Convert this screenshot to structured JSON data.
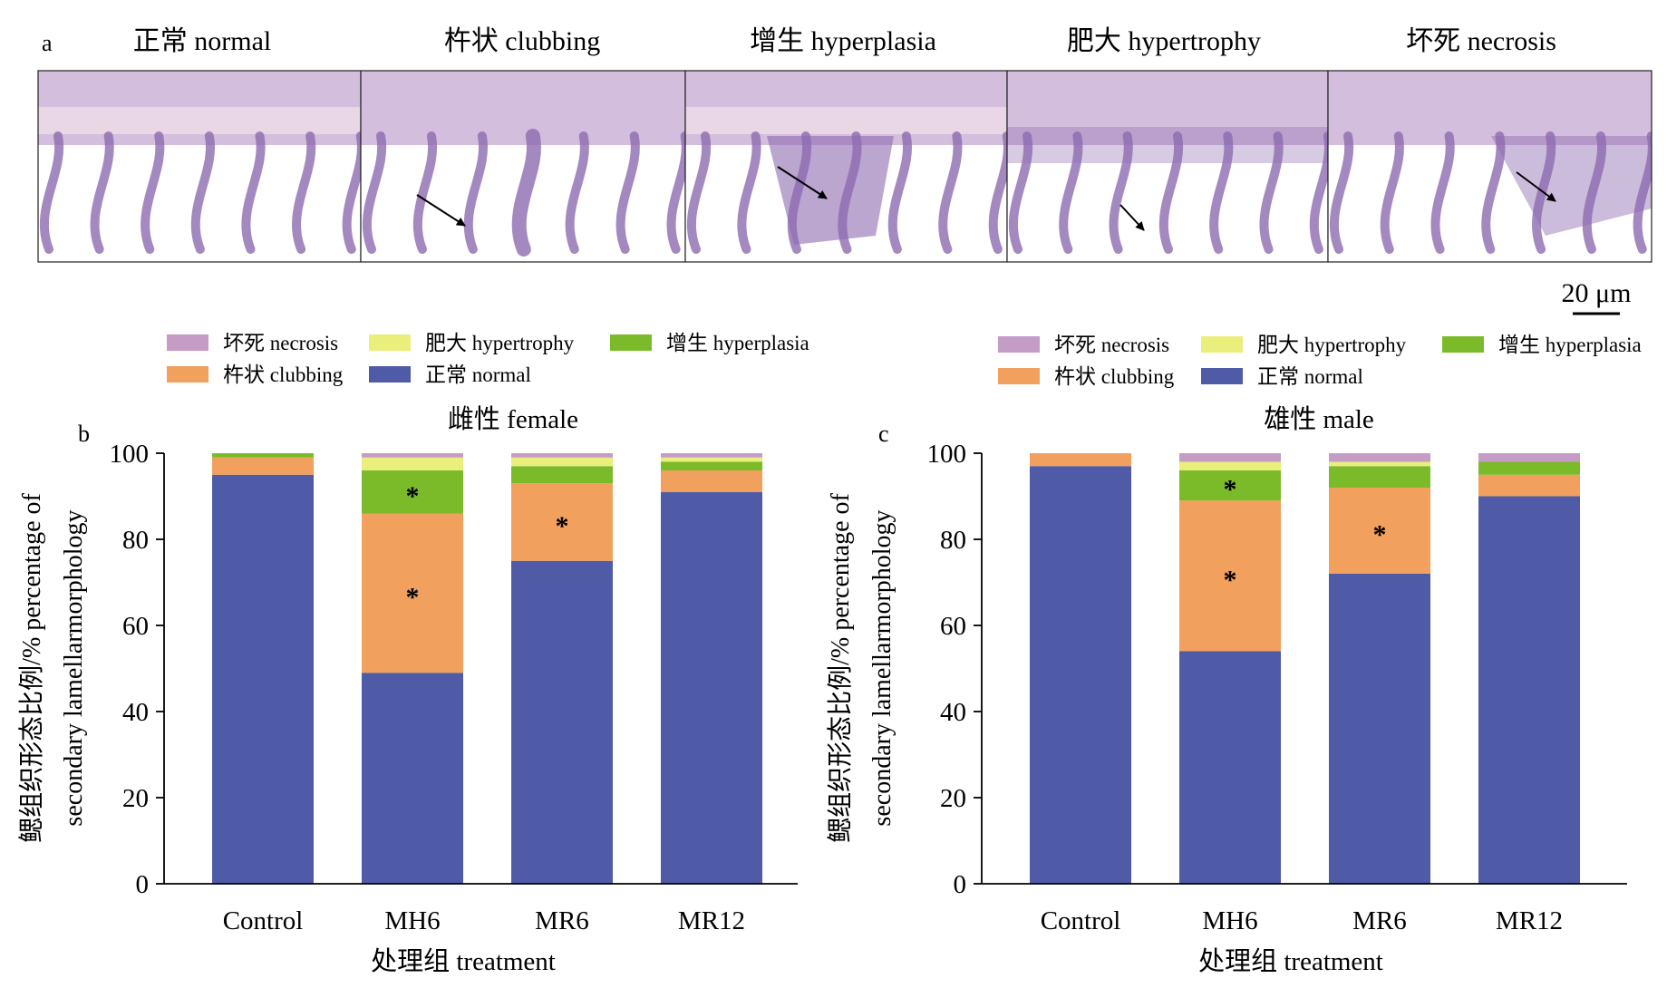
{
  "panel_a": {
    "letter": "a",
    "titles": [
      "正常 normal",
      "杵状 clubbing",
      "增生 hyperplasia",
      "肥大 hypertrophy",
      "坏死 necrosis"
    ],
    "scale_bar": "20 μm"
  },
  "colors": {
    "normal": "#4f5ba6",
    "clubbing": "#f2a05e",
    "hyperplasia": "#7bbb2a",
    "hypertrophy": "#eaef7c",
    "necrosis": "#c49cc6",
    "tissue": "#cdb3d7",
    "tissue_dark": "#8d6ab0",
    "cartilage": "#e9d7e6"
  },
  "chart_data": [
    {
      "panel": "b",
      "type": "bar",
      "stacked": true,
      "title": "雌性 female",
      "xlabel": "处理组 treatment",
      "ylabel": "鳃组织形态比例/% percentage of secondary lamellarmorphology",
      "ylabel_lines": [
        "鳃组织形态比例/% percentage of",
        "secondary lamellarmorphology"
      ],
      "ylim": [
        0,
        100
      ],
      "yticks": [
        0,
        20,
        40,
        60,
        80,
        100
      ],
      "grid": false,
      "legend": {
        "position": "top",
        "entries": [
          {
            "key": "necrosis",
            "label": "坏死 necrosis"
          },
          {
            "key": "hypertrophy",
            "label": "肥大 hypertrophy"
          },
          {
            "key": "hyperplasia",
            "label": "增生 hyperplasia"
          },
          {
            "key": "clubbing",
            "label": "杵状 clubbing"
          },
          {
            "key": "normal",
            "label": "正常 normal"
          }
        ]
      },
      "categories": [
        "Control",
        "MH6",
        "MR6",
        "MR12"
      ],
      "series": [
        {
          "name": "正常 normal",
          "key": "normal",
          "values": [
            95,
            49,
            75,
            91
          ]
        },
        {
          "name": "杵状 clubbing",
          "key": "clubbing",
          "values": [
            4,
            37,
            18,
            5
          ]
        },
        {
          "name": "增生 hyperplasia",
          "key": "hyperplasia",
          "values": [
            1,
            10,
            4,
            2
          ]
        },
        {
          "name": "肥大 hypertrophy",
          "key": "hypertrophy",
          "values": [
            0,
            3,
            2,
            1
          ]
        },
        {
          "name": "坏死 necrosis",
          "key": "necrosis",
          "values": [
            0,
            1,
            1,
            1
          ]
        }
      ],
      "annotations": [
        {
          "category": "MH6",
          "series": "hyperplasia",
          "text": "*"
        },
        {
          "category": "MH6",
          "series": "clubbing",
          "text": "*"
        },
        {
          "category": "MR6",
          "series": "clubbing",
          "text": "*"
        }
      ]
    },
    {
      "panel": "c",
      "type": "bar",
      "stacked": true,
      "title": "雄性 male",
      "xlabel": "处理组 treatment",
      "ylabel": "鳃组织形态比例/% percentage of secondary lamellarmorphology",
      "ylabel_lines": [
        "鳃组织形态比例/% percentage of",
        "secondary lamellarmorphology"
      ],
      "ylim": [
        0,
        100
      ],
      "yticks": [
        0,
        20,
        40,
        60,
        80,
        100
      ],
      "grid": false,
      "legend": {
        "position": "top",
        "entries": [
          {
            "key": "necrosis",
            "label": "坏死 necrosis"
          },
          {
            "key": "hypertrophy",
            "label": "肥大 hypertrophy"
          },
          {
            "key": "hyperplasia",
            "label": "增生 hyperplasia"
          },
          {
            "key": "clubbing",
            "label": "杵状 clubbing"
          },
          {
            "key": "normal",
            "label": "正常 normal"
          }
        ]
      },
      "categories": [
        "Control",
        "MH6",
        "MR6",
        "MR12"
      ],
      "series": [
        {
          "name": "正常 normal",
          "key": "normal",
          "values": [
            97,
            54,
            72,
            90
          ]
        },
        {
          "name": "杵状 clubbing",
          "key": "clubbing",
          "values": [
            3,
            35,
            20,
            5
          ]
        },
        {
          "name": "增生 hyperplasia",
          "key": "hyperplasia",
          "values": [
            0,
            7,
            5,
            3
          ]
        },
        {
          "name": "肥大 hypertrophy",
          "key": "hypertrophy",
          "values": [
            0,
            2,
            1,
            0
          ]
        },
        {
          "name": "坏死 necrosis",
          "key": "necrosis",
          "values": [
            0,
            2,
            2,
            2
          ]
        }
      ],
      "annotations": [
        {
          "category": "MH6",
          "series": "hyperplasia",
          "text": "*"
        },
        {
          "category": "MH6",
          "series": "clubbing",
          "text": "*"
        },
        {
          "category": "MR6",
          "series": "clubbing",
          "text": "*"
        }
      ]
    }
  ]
}
